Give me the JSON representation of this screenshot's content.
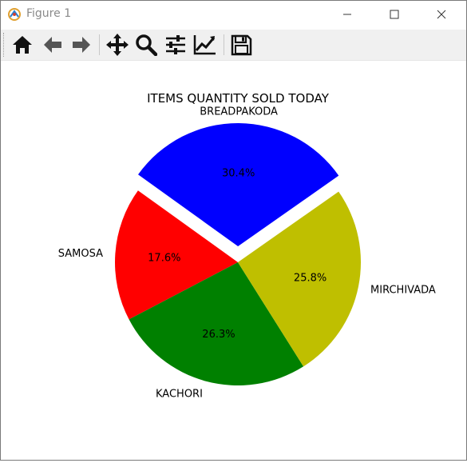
{
  "window": {
    "title": "Figure 1",
    "minimize_glyph": "—",
    "maximize_glyph": "☐",
    "close_glyph": "✕"
  },
  "toolbar": {
    "icons": [
      "home-icon",
      "back-arrow-icon",
      "forward-arrow-icon",
      "move-icon",
      "zoom-icon",
      "configure-subplots-icon",
      "edit-axis-icon",
      "save-icon"
    ]
  },
  "chart_data": {
    "type": "pie",
    "title": "ITEMS QUANTITY SOLD TODAY",
    "slices": [
      {
        "label": "BREADPAKODA",
        "value": 30.4,
        "pct": "30.4%",
        "color": "#0000ff",
        "explode": true
      },
      {
        "label": "SAMOSA",
        "value": 17.6,
        "pct": "17.6%",
        "color": "#ff0000",
        "explode": false
      },
      {
        "label": "KACHORI",
        "value": 26.3,
        "pct": "26.3%",
        "color": "#008000",
        "explode": false
      },
      {
        "label": "MIRCHIVADA",
        "value": 25.8,
        "pct": "25.8%",
        "color": "#bfbf00",
        "explode": false
      }
    ],
    "start_angle_deg": 35,
    "direction": "counterclockwise"
  }
}
